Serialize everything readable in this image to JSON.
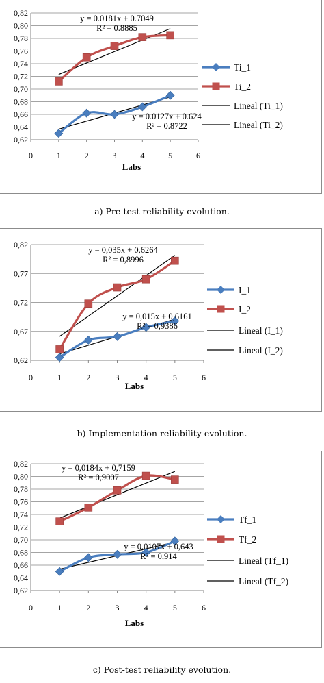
{
  "colors": {
    "series1": "#4a7ebf",
    "series2": "#c0504d",
    "trend": "#000000",
    "grid": "#868686"
  },
  "chart_data": [
    {
      "type": "line",
      "caption": "a) Pre-test reliability evolution.",
      "xlabel": "Labs",
      "xlim": [
        0,
        6
      ],
      "xticks": [
        "0",
        "1",
        "2",
        "3",
        "4",
        "5",
        "6"
      ],
      "ylim": [
        0.62,
        0.82
      ],
      "yticks": [
        "0,62",
        "0,64",
        "0,66",
        "0,68",
        "0,70",
        "0,72",
        "0,74",
        "0,76",
        "0,78",
        "0,80",
        "0,82"
      ],
      "grid": true,
      "legend_position": "right",
      "series": [
        {
          "name": "Ti_1",
          "x": [
            1,
            2,
            3,
            4,
            5
          ],
          "values": [
            0.63,
            0.662,
            0.66,
            0.672,
            0.69
          ],
          "marker": "diamond"
        },
        {
          "name": "Ti_2",
          "x": [
            1,
            2,
            3,
            4,
            5
          ],
          "values": [
            0.712,
            0.75,
            0.768,
            0.782,
            0.785
          ],
          "marker": "square"
        }
      ],
      "trendlines": [
        {
          "name": "Lineal (Ti_1)",
          "of": 0,
          "slope": 0.0127,
          "intercept": 0.624,
          "equation": "y = 0.0127x + 0.624",
          "r2": "R² = 0.8722"
        },
        {
          "name": "Lineal (Ti_2)",
          "of": 1,
          "slope": 0.0181,
          "intercept": 0.7049,
          "equation": "y = 0.0181x + 0.7049",
          "r2": "R² = 0.8885"
        }
      ]
    },
    {
      "type": "line",
      "caption": "b) Implementation reliability evolution.",
      "xlabel": "Labs",
      "xlim": [
        0,
        6
      ],
      "xticks": [
        "0",
        "1",
        "2",
        "3",
        "4",
        "5",
        "6"
      ],
      "ylim": [
        0.62,
        0.82
      ],
      "yticks": [
        "0,62",
        "0,67",
        "0,72",
        "0,77",
        "0,82"
      ],
      "grid": true,
      "legend_position": "right",
      "series": [
        {
          "name": "I_1",
          "x": [
            1,
            2,
            3,
            4,
            5
          ],
          "values": [
            0.625,
            0.655,
            0.661,
            0.677,
            0.688
          ],
          "marker": "diamond"
        },
        {
          "name": "I_2",
          "x": [
            1,
            2,
            3,
            4,
            5
          ],
          "values": [
            0.639,
            0.718,
            0.746,
            0.76,
            0.792
          ],
          "marker": "square"
        }
      ],
      "trendlines": [
        {
          "name": "Lineal (I_1)",
          "of": 0,
          "slope": 0.015,
          "intercept": 0.6161,
          "equation": "y = 0,015x + 0,6161",
          "r2": "R² = 0,9386"
        },
        {
          "name": "Lineal (I_2)",
          "of": 1,
          "slope": 0.035,
          "intercept": 0.6264,
          "equation": "y = 0,035x + 0,6264",
          "r2": "R² = 0,8996"
        }
      ]
    },
    {
      "type": "line",
      "caption": "c) Post-test reliability evolution.",
      "xlabel": "Labs",
      "xlim": [
        0,
        6
      ],
      "xticks": [
        "0",
        "1",
        "2",
        "3",
        "4",
        "5",
        "6"
      ],
      "ylim": [
        0.62,
        0.82
      ],
      "yticks": [
        "0,62",
        "0,64",
        "0,66",
        "0,68",
        "0,70",
        "0,72",
        "0,74",
        "0,76",
        "0,78",
        "0,80",
        "0,82"
      ],
      "grid": true,
      "legend_position": "right",
      "series": [
        {
          "name": "Tf_1",
          "x": [
            1,
            2,
            3,
            4,
            5
          ],
          "values": [
            0.65,
            0.672,
            0.677,
            0.68,
            0.698
          ],
          "marker": "diamond"
        },
        {
          "name": "Tf_2",
          "x": [
            1,
            2,
            3,
            4,
            5
          ],
          "values": [
            0.729,
            0.751,
            0.778,
            0.801,
            0.795
          ],
          "marker": "square"
        }
      ],
      "trendlines": [
        {
          "name": "Lineal (Tf_1)",
          "of": 0,
          "slope": 0.0107,
          "intercept": 0.643,
          "equation": "y = 0,0107x + 0,643",
          "r2": "R² = 0,914"
        },
        {
          "name": "Lineal (Tf_2)",
          "of": 1,
          "slope": 0.0184,
          "intercept": 0.7159,
          "equation": "y = 0,0184x + 0,7159",
          "r2": "R² = 0,9007"
        }
      ]
    }
  ]
}
